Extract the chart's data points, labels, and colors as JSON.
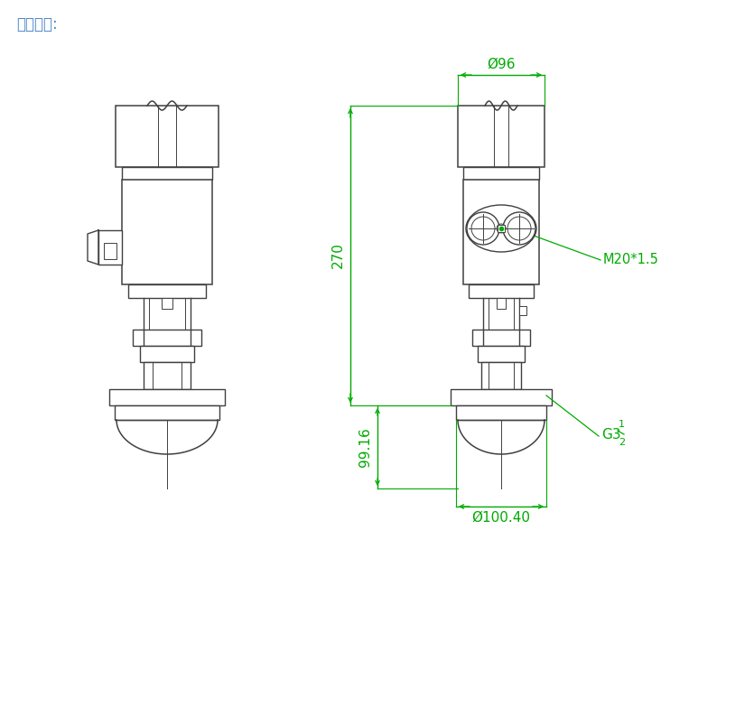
{
  "title": "尺寸结构:",
  "title_color": "#4a86c8",
  "bg_color": "#ffffff",
  "line_color": "#404040",
  "green_color": "#00aa00",
  "label_96": "Ø96",
  "label_270": "270",
  "label_9916": "99.16",
  "label_10040": "Ø100.40",
  "label_m20": "M20*1.5",
  "label_g3": "G3",
  "label_g3_sup": "1",
  "label_g3_sub": "2"
}
